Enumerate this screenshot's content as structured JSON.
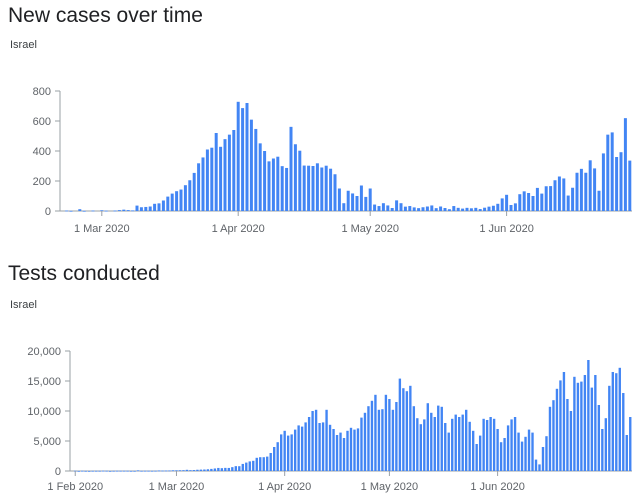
{
  "charts": [
    {
      "title": "New cases over time",
      "subtitle": "Israel"
    },
    {
      "title": "Tests conducted",
      "subtitle": "Israel"
    }
  ],
  "colors": {
    "bar": "#4285f4",
    "axis": "#9aa0a6",
    "tick_text": "#5f6368",
    "title": "#202124"
  },
  "chart_data": [
    {
      "type": "bar",
      "title": "New cases over time",
      "subtitle": "Israel",
      "x_start": "2020-02-21",
      "x_end": "2020-06-30",
      "ylim": [
        0,
        800
      ],
      "y_ticks": [
        0,
        200,
        400,
        600,
        800
      ],
      "y_tick_labels": [
        "0",
        "200",
        "400",
        "600",
        "800"
      ],
      "x_ticks": [
        {
          "date": "2020-03-01",
          "label": "1 Mar 2020"
        },
        {
          "date": "2020-04-01",
          "label": "1 Apr 2020"
        },
        {
          "date": "2020-05-01",
          "label": "1 May 2020"
        },
        {
          "date": "2020-06-01",
          "label": "1 Jun 2020"
        }
      ],
      "grid": false,
      "values": [
        0,
        3,
        1,
        0,
        12,
        1,
        0,
        3,
        0,
        5,
        2,
        0,
        3,
        6,
        9,
        6,
        4,
        36,
        25,
        27,
        30,
        48,
        51,
        70,
        96,
        116,
        132,
        143,
        172,
        205,
        254,
        318,
        357,
        410,
        422,
        520,
        428,
        479,
        509,
        540,
        728,
        686,
        720,
        609,
        547,
        451,
        400,
        331,
        350,
        362,
        299,
        287,
        561,
        445,
        402,
        303,
        302,
        300,
        318,
        290,
        302,
        282,
        245,
        150,
        52,
        135,
        117,
        100,
        170,
        94,
        150,
        43,
        33,
        52,
        37,
        20,
        71,
        52,
        29,
        33,
        24,
        19,
        25,
        30,
        37,
        19,
        30,
        20,
        12,
        33,
        21,
        16,
        21,
        18,
        21,
        13,
        22,
        29,
        35,
        48,
        84,
        108,
        40,
        51,
        112,
        131,
        120,
        100,
        154,
        116,
        165,
        166,
        205,
        230,
        217,
        103,
        155,
        255,
        281,
        255,
        338,
        284,
        135,
        384,
        509,
        524,
        360,
        392,
        619,
        336
      ]
    },
    {
      "type": "bar",
      "title": "Tests conducted",
      "subtitle": "Israel",
      "x_start": "2020-01-31",
      "x_end": "2020-06-30",
      "ylim": [
        0,
        20000
      ],
      "y_ticks": [
        0,
        5000,
        10000,
        15000,
        20000
      ],
      "y_tick_labels": [
        "0",
        "5,000",
        "10,000",
        "15,000",
        "20,000"
      ],
      "x_ticks": [
        {
          "date": "2020-02-01",
          "label": "1 Feb 2020"
        },
        {
          "date": "2020-03-01",
          "label": "1 Mar 2020"
        },
        {
          "date": "2020-04-01",
          "label": "1 Apr 2020"
        },
        {
          "date": "2020-05-01",
          "label": "1 May 2020"
        },
        {
          "date": "2020-06-01",
          "label": "1 Jun 2020"
        }
      ],
      "grid": false,
      "values": [
        0,
        40,
        10,
        40,
        20,
        10,
        30,
        30,
        30,
        50,
        40,
        10,
        30,
        40,
        40,
        40,
        40,
        20,
        20,
        110,
        30,
        40,
        40,
        30,
        40,
        90,
        70,
        80,
        90,
        120,
        120,
        130,
        140,
        200,
        140,
        160,
        210,
        230,
        250,
        290,
        350,
        420,
        510,
        470,
        520,
        510,
        640,
        810,
        800,
        1180,
        1400,
        1600,
        1700,
        2200,
        2300,
        2300,
        2400,
        3000,
        4000,
        4800,
        6100,
        6700,
        5900,
        6100,
        6900,
        7600,
        7400,
        8100,
        9000,
        10000,
        10200,
        8000,
        8100,
        10200,
        7700,
        7000,
        6000,
        6400,
        5500,
        6700,
        7200,
        6900,
        7100,
        8900,
        9700,
        10800,
        11700,
        12700,
        10200,
        10300,
        12700,
        12000,
        10200,
        11500,
        15400,
        13800,
        13300,
        14200,
        10800,
        8800,
        7800,
        8600,
        11300,
        9700,
        9000,
        10900,
        10700,
        8000,
        6400,
        8700,
        9400,
        9000,
        9400,
        10200,
        8200,
        6700,
        4500,
        5900,
        8700,
        8500,
        9000,
        8700,
        7000,
        4800,
        5500,
        7600,
        8600,
        9000,
        6400,
        4900,
        5700,
        6900,
        6400,
        1900,
        1100,
        4000,
        5800,
        10700,
        11800,
        13700,
        15100,
        16500,
        12000,
        10000,
        15700,
        14700,
        14900,
        16000,
        18500,
        13900,
        16000,
        11000,
        7000,
        8800,
        14200,
        16500,
        16300,
        17200,
        13000,
        6000,
        9000
      ]
    }
  ]
}
